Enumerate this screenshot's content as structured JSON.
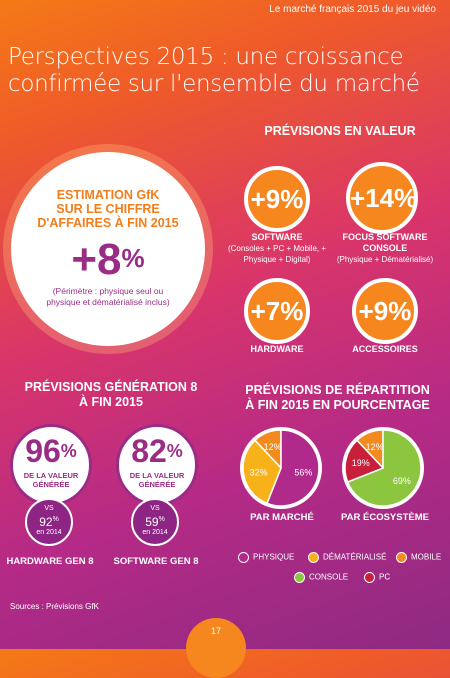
{
  "header": {
    "running_title": "Le marché français 2015 du jeu vidéo"
  },
  "title": {
    "line1": "Perspectives 2015 : une croissance",
    "line2": "confirmée sur l'ensemble du marché"
  },
  "estimation": {
    "heading_l1": "ESTIMATION GfK",
    "heading_l2": "SUR LE CHIFFRE",
    "heading_l3": "D'AFFAIRES À FIN 2015",
    "value": "+8",
    "pct": "%",
    "note": "(Périmètre : physique seul ou physique et dématérialisé inclus)"
  },
  "previsions_valeur": {
    "heading": "PRÉVISIONS EN VALEUR",
    "items": [
      {
        "value": "+9%",
        "label": "SOFTWARE",
        "sub": "(Consoles + PC + Mobile, + Physique + Digital)"
      },
      {
        "value": "+14%",
        "label": "FOCUS SOFTWARE CONSOLE",
        "sub": "(Physique + Dématérialisé)"
      },
      {
        "value": "+7%",
        "label": "HARDWARE",
        "sub": ""
      },
      {
        "value": "+9%",
        "label": "ACCESSOIRES",
        "sub": ""
      }
    ]
  },
  "generation8": {
    "heading_l1": "PRÉVISIONS GÉNÉRATION 8",
    "heading_l2": "À FIN 2015",
    "items": [
      {
        "value": "96",
        "pct": "%",
        "label_l1": "DE LA VALEUR",
        "label_l2": "GÉNÉRÉE",
        "vs": "VS",
        "prev": "92",
        "prev_pct": "%",
        "year": "en 2014",
        "caption": "HARDWARE GEN 8"
      },
      {
        "value": "82",
        "pct": "%",
        "label_l1": "DE LA VALEUR",
        "label_l2": "GÉNÉRÉE",
        "vs": "VS",
        "prev": "59",
        "prev_pct": "%",
        "year": "en 2014",
        "caption": "SOFTWARE GEN 8"
      }
    ]
  },
  "repartition": {
    "heading_l1": "PRÉVISIONS DE RÉPARTITION",
    "heading_l2": "À FIN 2015 EN POURCENTAGE",
    "legend": [
      {
        "name": "PHYSIQUE",
        "color": "#b02a8c"
      },
      {
        "name": "DÉMATÉRIALISÉ",
        "color": "#f7b21a"
      },
      {
        "name": "MOBILE",
        "color": "#f28a1e"
      },
      {
        "name": "CONSOLE",
        "color": "#8cc63f"
      },
      {
        "name": "PC",
        "color": "#c8203a"
      }
    ]
  },
  "chart_data": [
    {
      "type": "pie",
      "title": "PAR MARCHÉ",
      "slices": [
        {
          "name": "PHYSIQUE",
          "value": 56,
          "color": "#b02a8c"
        },
        {
          "name": "DÉMATÉRIALISÉ",
          "value": 32,
          "color": "#f7b21a"
        },
        {
          "name": "MOBILE",
          "value": 12,
          "color": "#f28a1e"
        }
      ]
    },
    {
      "type": "pie",
      "title": "PAR ÉCOSYSTÈME",
      "slices": [
        {
          "name": "CONSOLE",
          "value": 69,
          "color": "#8cc63f"
        },
        {
          "name": "PC",
          "value": 19,
          "color": "#c8203a"
        },
        {
          "name": "MOBILE",
          "value": 12,
          "color": "#f28a1e"
        }
      ]
    }
  ],
  "footer": {
    "sources": "Sources : Prévisions GfK",
    "page": "17"
  }
}
